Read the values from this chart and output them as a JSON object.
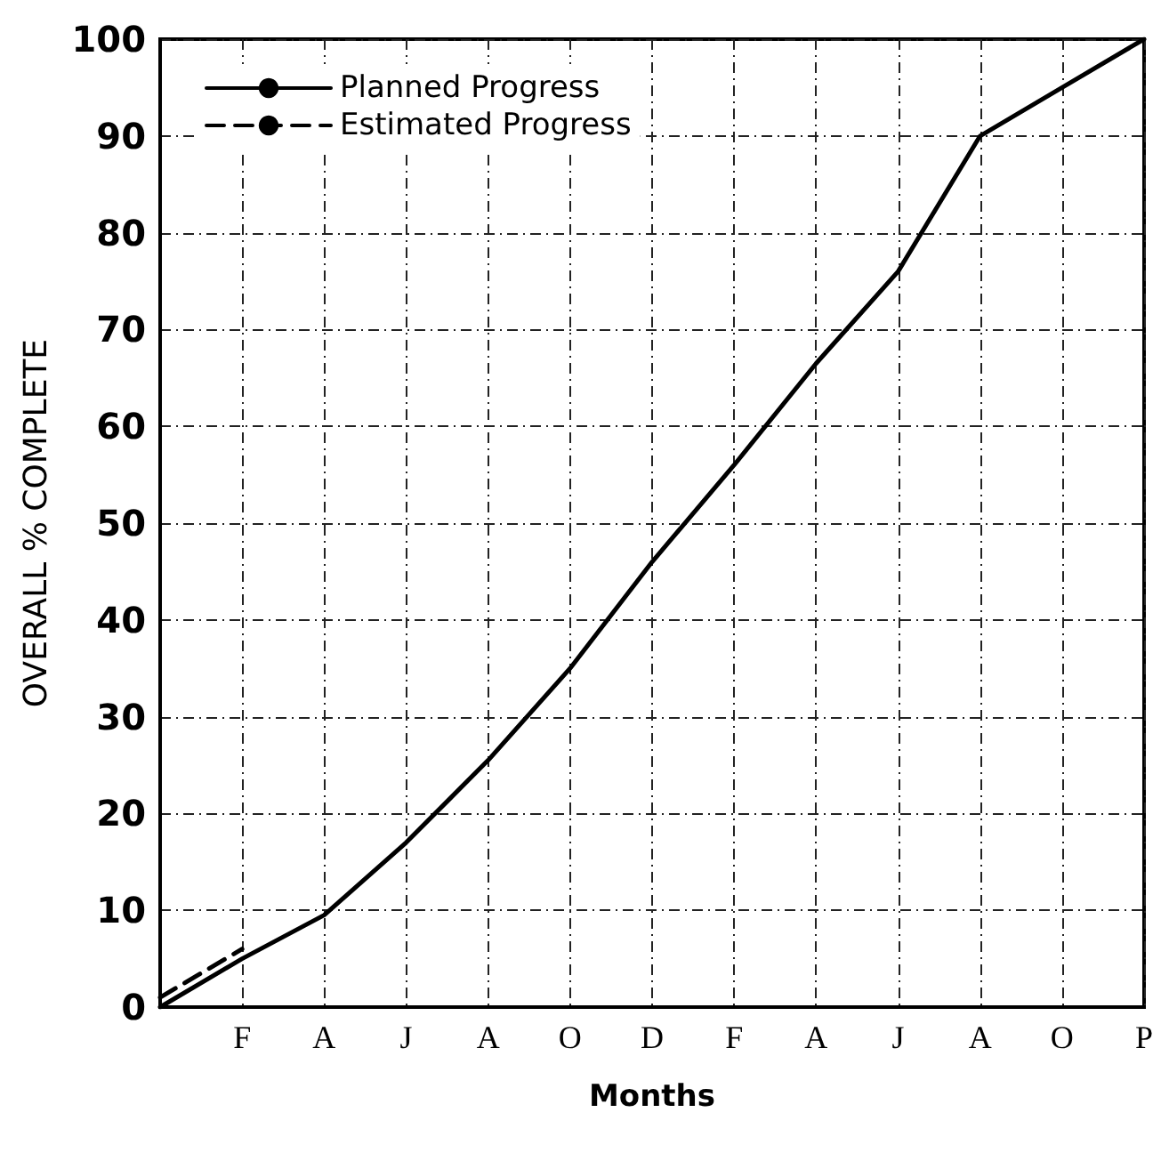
{
  "chart_data": {
    "type": "line",
    "xlabel": "Months",
    "ylabel": "OVERALL % COMPLETE",
    "categories": [
      null,
      "F",
      "A",
      "J",
      "A",
      "O",
      "D",
      "F",
      "A",
      "J",
      "A",
      "O",
      "P"
    ],
    "series": [
      {
        "name": "Planned Progress",
        "color": "#000000",
        "line_style": "solid",
        "values": [
          0,
          5,
          9.5,
          17,
          25.5,
          35,
          46,
          56,
          66.5,
          76,
          90,
          95,
          100
        ]
      },
      {
        "name": "Estimated Progress",
        "color": "#000000",
        "line_style": "dashed",
        "values": [
          1,
          6,
          null,
          null,
          null,
          null,
          null,
          null,
          null,
          null,
          null,
          null,
          null
        ]
      }
    ],
    "ylim": [
      0,
      100
    ],
    "yticks": [
      0,
      10,
      20,
      30,
      40,
      50,
      60,
      70,
      80,
      90,
      100
    ],
    "grid": true,
    "legend": "top left",
    "marker": "none"
  }
}
